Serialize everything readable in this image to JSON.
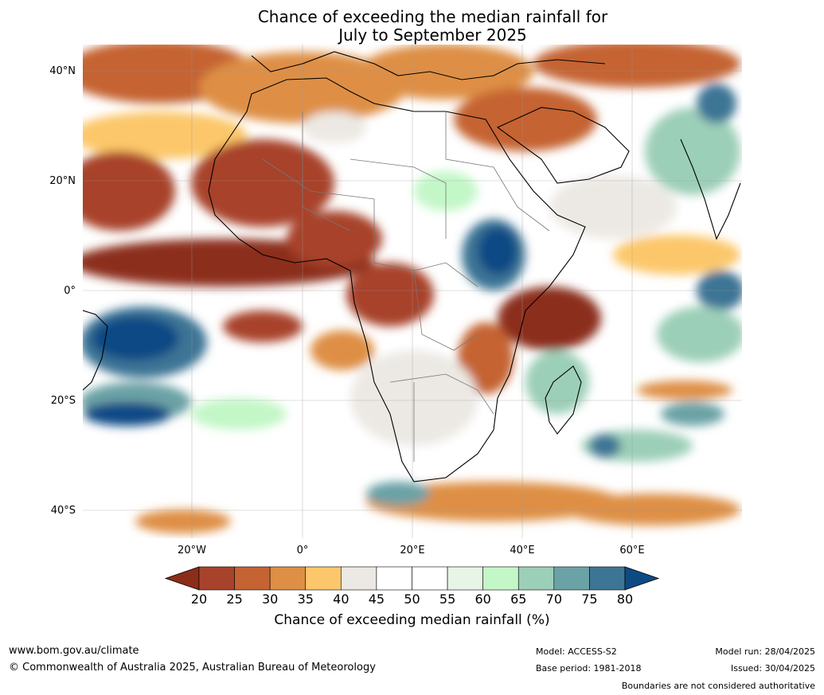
{
  "title_line1": "Chance of exceeding the median rainfall for",
  "title_line2": "July to September 2025",
  "lat_labels": [
    "40°N",
    "20°N",
    "0°",
    "20°S",
    "40°S"
  ],
  "lon_labels": [
    "20°W",
    "0°",
    "20°E",
    "40°E",
    "60°E"
  ],
  "colorbar": {
    "ticks": [
      "20",
      "25",
      "30",
      "35",
      "40",
      "45",
      "50",
      "55",
      "60",
      "65",
      "70",
      "75",
      "80"
    ],
    "label": "Chance of exceeding median rainfall (%)",
    "colors": [
      "#8c2d1a",
      "#a8432b",
      "#c56333",
      "#de8f45",
      "#fcc76a",
      "#ece9e4",
      "#ffffff",
      "#ffffff",
      "#e6f5e6",
      "#c3f7c7",
      "#9ccfb8",
      "#6ba2a6",
      "#3d7595",
      "#0d4a84"
    ]
  },
  "footer": {
    "website": "www.bom.gov.au/climate",
    "copyright": "© Commonwealth of Australia 2025, Australian Bureau of Meteorology",
    "model": "Model: ACCESS-S2",
    "base_period": "Base period: 1981-2018",
    "model_run": "Model run: 28/04/2025",
    "issued": "Issued: 30/04/2025",
    "disclaimer": "Boundaries are not considered authoritative"
  }
}
